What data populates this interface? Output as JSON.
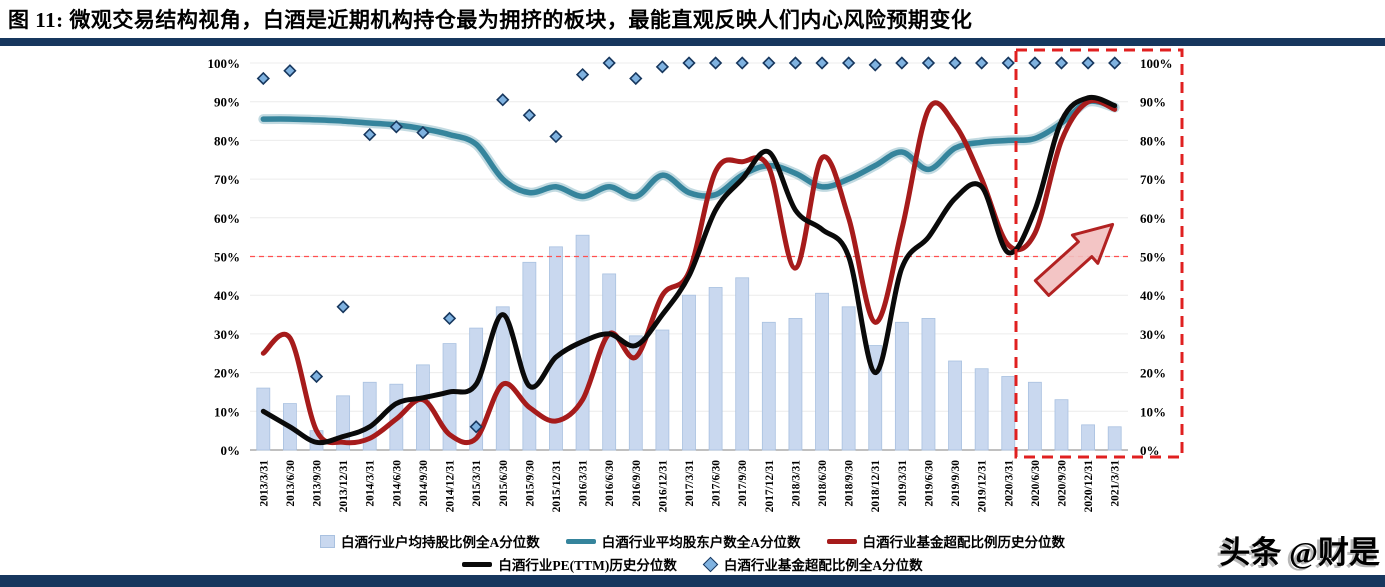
{
  "figure": {
    "title": "图 11: 微观交易结构视角，白酒是近期机构持仓最为拥挤的板块，最能直观反映人们内心风险预期变化",
    "watermark": "头条 @财是"
  },
  "colors": {
    "navy_rule": "#17375E",
    "bar_fill": "#C9D8EF",
    "bar_border": "#A9C1E0",
    "teal_line": "#35849C",
    "red_line": "#A61B1B",
    "black_line": "#0A0A0A",
    "diamond_fill": "#7FB2E0",
    "diamond_border": "#17375E",
    "reference_line": "#FF5050",
    "highlight_box": "#E02020",
    "arrow_fill": "#F2BFBF",
    "arrow_border": "#B22222",
    "gridline": "#ECECEC",
    "axis_line": "#808080",
    "axis_text": "#000000"
  },
  "chart_data": {
    "type": "combo: bar + line + scatter (all values are percentiles, dual percent y-axes)",
    "categories": [
      "2013/3/31",
      "2013/6/30",
      "2013/9/30",
      "2013/12/31",
      "2014/3/31",
      "2014/6/30",
      "2014/9/30",
      "2014/12/31",
      "2015/3/31",
      "2015/6/30",
      "2015/9/30",
      "2015/12/31",
      "2016/3/31",
      "2016/6/30",
      "2016/9/30",
      "2016/12/31",
      "2017/3/31",
      "2017/6/30",
      "2017/9/30",
      "2017/12/31",
      "2018/3/31",
      "2018/6/30",
      "2018/9/30",
      "2018/12/31",
      "2019/3/31",
      "2019/6/30",
      "2019/9/30",
      "2019/12/31",
      "2020/3/31",
      "2020/6/30",
      "2020/9/30",
      "2020/12/31",
      "2021/3/31"
    ],
    "series": [
      {
        "name": "白酒行业户均持股比例全A分位数",
        "type": "bar",
        "values": [
          16,
          12,
          5,
          14,
          17.5,
          17,
          22,
          27.5,
          31.5,
          37,
          48.5,
          52.5,
          55.5,
          45.5,
          29.5,
          31,
          40,
          42,
          44.5,
          33,
          34,
          40.5,
          37,
          27,
          33,
          34,
          23,
          21,
          19,
          17.5,
          13,
          6.5,
          6
        ]
      },
      {
        "name": "白酒行业平均股东户数全A分位数",
        "type": "line",
        "values": [
          85.5,
          85.5,
          85.3,
          85,
          84.5,
          84,
          83,
          81.5,
          79,
          70,
          66.5,
          68,
          65.5,
          68,
          65.5,
          71,
          66.5,
          66,
          71,
          73.5,
          71.5,
          68,
          70,
          73.5,
          77,
          72.5,
          78,
          79.5,
          80,
          80.5,
          84.5,
          90,
          88.5
        ]
      },
      {
        "name": "白酒行业基金超配比例历史分位数",
        "type": "line",
        "values": [
          25,
          29,
          5,
          2,
          3,
          8,
          13,
          4,
          3,
          17,
          11,
          7.5,
          13,
          30,
          24,
          40,
          46,
          72,
          74.5,
          73,
          47,
          75.5,
          60,
          33,
          57,
          88,
          84,
          70,
          53,
          56,
          80,
          90,
          88
        ]
      },
      {
        "name": "白酒行业PE(TTM)历史分位数",
        "type": "line",
        "values": [
          10,
          6,
          2,
          3.5,
          6,
          12,
          13.5,
          15,
          17,
          35,
          16.5,
          24,
          28,
          30,
          27,
          35,
          45,
          62,
          70,
          77,
          62,
          57,
          50,
          20,
          47,
          55,
          65,
          68,
          51,
          62,
          85,
          91,
          89
        ]
      },
      {
        "name": "白酒行业基金超配比例全A分位数",
        "type": "scatter",
        "values": [
          96,
          98,
          19,
          37,
          81.5,
          83.5,
          82,
          34,
          6,
          90.5,
          86.5,
          81,
          97,
          100,
          96,
          99,
          100,
          100,
          100,
          100,
          100,
          100,
          100,
          99.5,
          100,
          100,
          100,
          100,
          100,
          100,
          100,
          100,
          100
        ]
      }
    ],
    "ylim": [
      0,
      100
    ],
    "y_tick_labels": [
      "0%",
      "10%",
      "20%",
      "30%",
      "40%",
      "50%",
      "60%",
      "70%",
      "80%",
      "90%",
      "100%"
    ],
    "dual_y_axis": true,
    "grid": "horizontal, light",
    "reference_line_y": 50,
    "highlight_region": {
      "from": "2020/6/30",
      "to": "2021/3/31",
      "style": "red dashed box with up-right block arrow"
    },
    "legend_position": "bottom"
  },
  "legend": {
    "items": [
      {
        "label": "白酒行业户均持股比例全A分位数",
        "swatch": "bar"
      },
      {
        "label": "白酒行业平均股东户数全A分位数",
        "swatch": "teal-line"
      },
      {
        "label": "白酒行业基金超配比例历史分位数",
        "swatch": "red-line"
      },
      {
        "label": "白酒行业PE(TTM)历史分位数",
        "swatch": "black-line"
      },
      {
        "label": "白酒行业基金超配比例全A分位数",
        "swatch": "diamond"
      }
    ]
  }
}
